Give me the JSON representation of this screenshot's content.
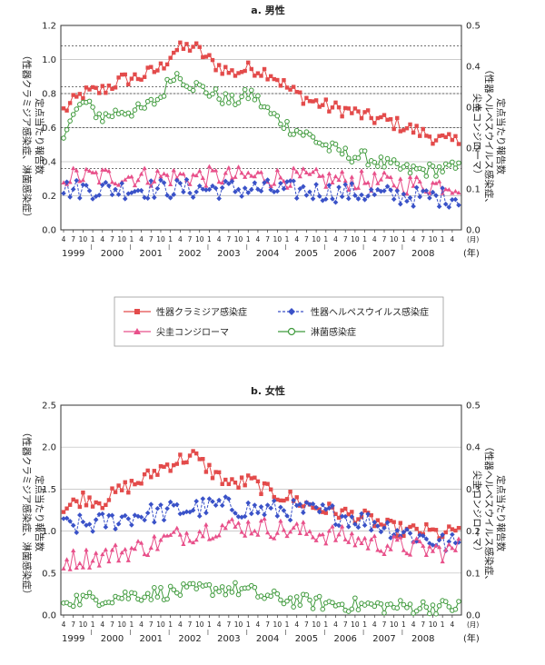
{
  "legend": {
    "chlamydia": "性器クラミジア感染症",
    "herpes": "性器ヘルペスウイルス感染症",
    "condyloma": "尖圭コンジローマ",
    "gonorrhea": "淋菌感染症"
  },
  "colors": {
    "chlamydia": "#e34b4b",
    "herpes": "#3a52c8",
    "condyloma": "#e8508a",
    "gonorrhea": "#3f9a3c"
  },
  "chart_data": [
    {
      "type": "line",
      "title": "a. 男性",
      "left_ylabel": [
        "定点当たり報告数",
        "（性器クラミジア感染症、淋菌感染症）"
      ],
      "right_ylabel": [
        "定点当たり報告数",
        "（性器ヘルペスウイルス感染症、",
        "尖圭コンジローマ）"
      ],
      "left_ylim": [
        0,
        1.2
      ],
      "right_ylim": [
        0,
        0.5
      ],
      "left_ticks": [
        "0.0",
        "0.2",
        "0.4",
        "0.6",
        "0.8",
        "1.0",
        "1.2"
      ],
      "right_ticks": [
        "0.0",
        "0.1",
        "0.2",
        "0.3",
        "0.4",
        "0.5"
      ],
      "month_label": "(月)",
      "year_unit": "(年)",
      "years": [
        "1999",
        "2000",
        "2001",
        "2002",
        "2003",
        "2004",
        "2005",
        "2006",
        "2007",
        "2008"
      ],
      "start": "1999-04",
      "x_unit": "month",
      "series": [
        {
          "name": "chlamydia",
          "axis": "left",
          "anchors": [
            [
              0,
              0.7
            ],
            [
              6,
              0.8
            ],
            [
              12,
              0.82
            ],
            [
              18,
              0.88
            ],
            [
              24,
              0.9
            ],
            [
              30,
              0.95
            ],
            [
              34,
              1.05
            ],
            [
              40,
              1.08
            ],
            [
              46,
              0.98
            ],
            [
              52,
              0.92
            ],
            [
              58,
              0.95
            ],
            [
              64,
              0.92
            ],
            [
              70,
              0.82
            ],
            [
              76,
              0.76
            ],
            [
              82,
              0.72
            ],
            [
              88,
              0.7
            ],
            [
              94,
              0.66
            ],
            [
              100,
              0.64
            ],
            [
              106,
              0.6
            ],
            [
              112,
              0.56
            ],
            [
              118,
              0.52
            ],
            [
              122,
              0.52
            ]
          ]
        },
        {
          "name": "gonorrhea",
          "axis": "left",
          "anchors": [
            [
              0,
              0.58
            ],
            [
              6,
              0.75
            ],
            [
              12,
              0.66
            ],
            [
              18,
              0.7
            ],
            [
              24,
              0.7
            ],
            [
              30,
              0.78
            ],
            [
              34,
              0.92
            ],
            [
              40,
              0.85
            ],
            [
              46,
              0.8
            ],
            [
              52,
              0.75
            ],
            [
              58,
              0.8
            ],
            [
              64,
              0.68
            ],
            [
              70,
              0.6
            ],
            [
              76,
              0.55
            ],
            [
              82,
              0.48
            ],
            [
              88,
              0.44
            ],
            [
              94,
              0.42
            ],
            [
              100,
              0.38
            ],
            [
              106,
              0.35
            ],
            [
              112,
              0.35
            ],
            [
              118,
              0.36
            ],
            [
              122,
              0.36
            ]
          ]
        },
        {
          "name": "condyloma",
          "axis": "right",
          "anchors": [
            [
              0,
              0.13
            ],
            [
              24,
              0.13
            ],
            [
              60,
              0.13
            ],
            [
              90,
              0.12
            ],
            [
              110,
              0.11
            ],
            [
              122,
              0.11
            ]
          ]
        },
        {
          "name": "herpes",
          "axis": "right",
          "anchors": [
            [
              0,
              0.1
            ],
            [
              24,
              0.1
            ],
            [
              60,
              0.1
            ],
            [
              90,
              0.09
            ],
            [
              110,
              0.08
            ],
            [
              122,
              0.08
            ]
          ]
        }
      ]
    },
    {
      "type": "line",
      "title": "b. 女性",
      "left_ylabel": [
        "定点当たり報告数",
        "（性器クラミジア感染症、淋菌感染症）"
      ],
      "right_ylabel": [
        "定点当たり報告数",
        "（性器ヘルペスウイルス感染症、",
        "尖圭コンジローマ）"
      ],
      "left_ylim": [
        0,
        2.5
      ],
      "right_ylim": [
        0,
        0.5
      ],
      "left_ticks": [
        "0.0",
        "0.5",
        "1.0",
        "1.5",
        "2.0",
        "2.5"
      ],
      "right_ticks": [
        "0.0",
        "0.1",
        "0.2",
        "0.3",
        "0.4",
        "0.5"
      ],
      "month_label": "(月)",
      "year_unit": "(年)",
      "years": [
        "1999",
        "2000",
        "2001",
        "2002",
        "2003",
        "2004",
        "2005",
        "2006",
        "2007",
        "2008"
      ],
      "start": "1999-04",
      "x_unit": "month",
      "series": [
        {
          "name": "chlamydia",
          "axis": "left",
          "anchors": [
            [
              0,
              1.25
            ],
            [
              6,
              1.4
            ],
            [
              12,
              1.35
            ],
            [
              18,
              1.5
            ],
            [
              24,
              1.6
            ],
            [
              30,
              1.75
            ],
            [
              36,
              1.85
            ],
            [
              40,
              1.9
            ],
            [
              46,
              1.7
            ],
            [
              52,
              1.55
            ],
            [
              58,
              1.6
            ],
            [
              64,
              1.45
            ],
            [
              70,
              1.4
            ],
            [
              76,
              1.3
            ],
            [
              82,
              1.25
            ],
            [
              88,
              1.2
            ],
            [
              94,
              1.15
            ],
            [
              100,
              1.05
            ],
            [
              106,
              1.0
            ],
            [
              112,
              1.0
            ],
            [
              118,
              0.95
            ],
            [
              122,
              1.05
            ]
          ]
        },
        {
          "name": "herpes",
          "axis": "right",
          "anchors": [
            [
              0,
              0.21
            ],
            [
              12,
              0.22
            ],
            [
              24,
              0.24
            ],
            [
              36,
              0.25
            ],
            [
              48,
              0.26
            ],
            [
              60,
              0.25
            ],
            [
              72,
              0.25
            ],
            [
              84,
              0.24
            ],
            [
              96,
              0.22
            ],
            [
              108,
              0.19
            ],
            [
              118,
              0.17
            ],
            [
              122,
              0.17
            ]
          ]
        },
        {
          "name": "condyloma",
          "axis": "right",
          "anchors": [
            [
              0,
              0.13
            ],
            [
              12,
              0.14
            ],
            [
              24,
              0.16
            ],
            [
              36,
              0.19
            ],
            [
              48,
              0.21
            ],
            [
              60,
              0.21
            ],
            [
              72,
              0.2
            ],
            [
              84,
              0.19
            ],
            [
              96,
              0.17
            ],
            [
              108,
              0.16
            ],
            [
              118,
              0.15
            ],
            [
              122,
              0.16
            ]
          ]
        },
        {
          "name": "gonorrhea",
          "axis": "left",
          "anchors": [
            [
              0,
              0.18
            ],
            [
              12,
              0.2
            ],
            [
              24,
              0.25
            ],
            [
              36,
              0.28
            ],
            [
              48,
              0.32
            ],
            [
              56,
              0.3
            ],
            [
              62,
              0.22
            ],
            [
              70,
              0.18
            ],
            [
              80,
              0.14
            ],
            [
              90,
              0.12
            ],
            [
              100,
              0.1
            ],
            [
              110,
              0.1
            ],
            [
              122,
              0.1
            ]
          ]
        }
      ]
    }
  ]
}
